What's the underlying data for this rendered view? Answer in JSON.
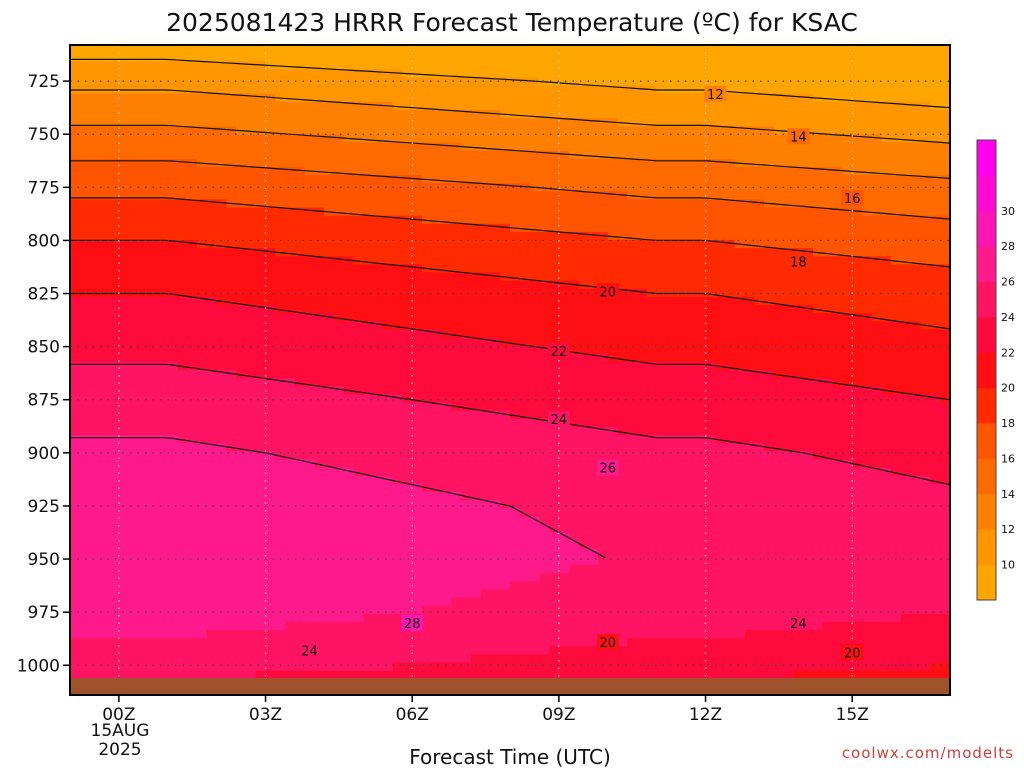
{
  "chart_data": {
    "type": "heatmap",
    "title": "2025081423 HRRR Forecast Temperature (ºC) for KSAC",
    "xlabel": "Forecast Time (UTC)",
    "ylabel": "",
    "x_ticks": [
      {
        "hour": 0,
        "label": "00Z"
      },
      {
        "hour": 3,
        "label": "03Z"
      },
      {
        "hour": 6,
        "label": "06Z"
      },
      {
        "hour": 9,
        "label": "09Z"
      },
      {
        "hour": 12,
        "label": "12Z"
      },
      {
        "hour": 15,
        "label": "15Z"
      }
    ],
    "x_date_label": "15AUG",
    "x_year_label": "2025",
    "x_range": [
      -1,
      17
    ],
    "y_ticks": [
      725,
      750,
      775,
      800,
      825,
      850,
      875,
      900,
      925,
      950,
      975,
      1000
    ],
    "y_range": [
      708,
      1014
    ],
    "ground_pressure": 1006,
    "grid": true,
    "colorbar": {
      "levels": [
        8,
        10,
        12,
        14,
        16,
        18,
        20,
        22,
        24,
        26,
        28,
        30,
        32
      ],
      "labels": [
        10,
        12,
        14,
        16,
        18,
        20,
        22,
        24,
        26,
        28,
        30
      ],
      "colors": [
        "#ffa500",
        "#ff9600",
        "#ff8000",
        "#ff6a00",
        "#ff5500",
        "#ff2a00",
        "#ff0f14",
        "#ff0a3c",
        "#ff1464",
        "#ff1a8c",
        "#ff14b4",
        "#ff0ad2",
        "#ff00ee"
      ]
    },
    "hours": [
      -1,
      0,
      1,
      2,
      3,
      4,
      5,
      6,
      7,
      8,
      9,
      10,
      11,
      12,
      13,
      14,
      15,
      16,
      17
    ],
    "pressures": [
      708,
      725,
      750,
      775,
      800,
      825,
      850,
      875,
      900,
      925,
      950,
      975,
      1000,
      1014
    ],
    "temperature_profile": [
      8.0,
      10.5,
      13.5,
      16.5,
      19.0,
      21.0,
      22.5,
      24.0,
      25.4,
      26.4,
      26.8,
      26.0,
      24.0,
      22.0
    ],
    "temperature_trend": [
      1.0,
      1.0,
      1.0,
      0.8,
      0.6,
      0.4,
      0.2,
      0.0,
      -0.2,
      -0.4,
      -0.6,
      -0.8,
      -1.0,
      -1.0,
      -1.2,
      -1.4,
      -1.6,
      -1.8,
      -2.0
    ],
    "contour_labels": [
      {
        "value": 12,
        "text": "12",
        "hour": 12.2,
        "pressure": 731
      },
      {
        "value": 14,
        "text": "14",
        "hour": 13.9,
        "pressure": 751
      },
      {
        "value": 16,
        "text": "16",
        "hour": 15.0,
        "pressure": 780
      },
      {
        "value": 18,
        "text": "18",
        "hour": 13.9,
        "pressure": 810
      },
      {
        "value": 20,
        "text": "20",
        "hour": 10.0,
        "pressure": 824
      },
      {
        "value": 22,
        "text": "22",
        "hour": 9.0,
        "pressure": 852
      },
      {
        "value": 24,
        "text": "24",
        "hour": 9.0,
        "pressure": 884
      },
      {
        "value": 26,
        "text": "26",
        "hour": 10.0,
        "pressure": 907
      },
      {
        "value": 28,
        "text": "28",
        "hour": 6.0,
        "pressure": 980
      },
      {
        "value": 24,
        "text": "24",
        "hour": 3.9,
        "pressure": 993
      },
      {
        "value": 20,
        "text": "20",
        "hour": 10.0,
        "pressure": 989
      },
      {
        "value": 24,
        "text": "24",
        "hour": 13.9,
        "pressure": 980
      },
      {
        "value": 20,
        "text": "20",
        "hour": 15.0,
        "pressure": 994
      }
    ]
  },
  "credit": "coolwx.com/modelts"
}
